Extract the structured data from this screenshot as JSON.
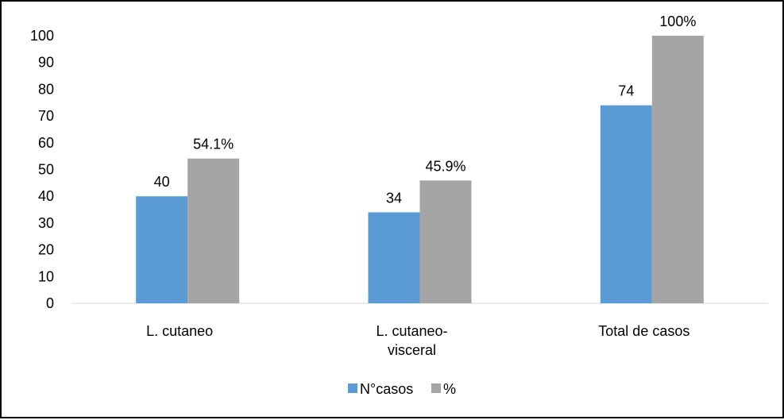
{
  "chart_data": {
    "type": "bar",
    "title": "",
    "xlabel": "",
    "ylabel": "",
    "ylim": [
      0,
      100
    ],
    "yticks": [
      0,
      10,
      20,
      30,
      40,
      50,
      60,
      70,
      80,
      90,
      100
    ],
    "categories": [
      [
        "L. cutaneo"
      ],
      [
        "L. cutaneo-",
        "visceral"
      ],
      [
        "Total de casos"
      ]
    ],
    "series": [
      {
        "name": "N°casos",
        "color": "#5b9bd5",
        "values": [
          40,
          34,
          74
        ],
        "labels": [
          "40",
          "34",
          "74"
        ]
      },
      {
        "name": "%",
        "color": "#a5a5a5",
        "values": [
          54.1,
          45.9,
          100
        ],
        "labels": [
          "54.1%",
          "45.9%",
          "100%"
        ]
      }
    ],
    "grid": false,
    "legend": "bottom-center"
  }
}
